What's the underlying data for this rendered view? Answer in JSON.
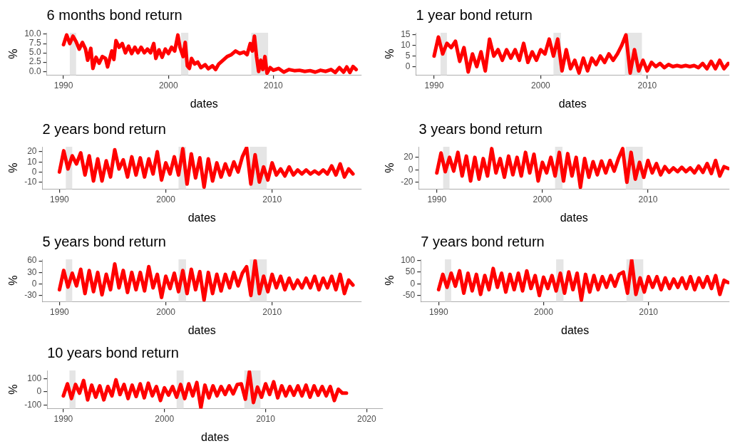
{
  "chart_data": [
    {
      "type": "line",
      "title": "6 months bond return",
      "xlabel": "dates",
      "ylabel": "%",
      "marker": "none",
      "line_style": "solid",
      "grid": false,
      "xlim": [
        1988.4,
        2018.4
      ],
      "xticks": [
        1990,
        2000,
        2010
      ],
      "ylim": [
        -1,
        10.4
      ],
      "yticks": [
        {
          "value": 0,
          "label": "0.0"
        },
        {
          "value": 2.5,
          "label": "2.5"
        },
        {
          "value": 5,
          "label": "5.0"
        },
        {
          "value": 7.5,
          "label": "7.5"
        },
        {
          "value": 10,
          "label": "10.0"
        }
      ],
      "bands": [
        {
          "axis": "x",
          "from": 1990.6,
          "to": 1991.2,
          "color": "#e5e5e5"
        },
        {
          "axis": "x",
          "from": 2001.2,
          "to": 2001.9,
          "color": "#e5e5e5"
        },
        {
          "axis": "x",
          "from": 2007.9,
          "to": 2009.5,
          "color": "#e5e5e5"
        }
      ],
      "series": [
        {
          "color": "#ff0000",
          "x": [
            1990.0,
            1990.3,
            1990.6,
            1990.9,
            1991.2,
            1991.5,
            1991.8,
            1992.1,
            1992.3,
            1992.6,
            1992.8,
            1993.1,
            1993.4,
            1993.7,
            1994.0,
            1994.2,
            1994.6,
            1994.8,
            1995.0,
            1995.3,
            1995.6,
            1995.9,
            1996.2,
            1996.5,
            1996.8,
            1997.1,
            1997.4,
            1997.7,
            1998.0,
            1998.3,
            1998.6,
            1998.8,
            1999.1,
            1999.4,
            1999.7,
            2000.0,
            2000.3,
            2000.6,
            2000.9,
            2001.1,
            2001.4,
            2001.6,
            2001.8,
            2002.0,
            2002.2,
            2002.5,
            2002.8,
            2003.1,
            2003.5,
            2003.8,
            2004.2,
            2004.5,
            2004.8,
            2005.2,
            2005.6,
            2006.0,
            2006.4,
            2006.8,
            2007.2,
            2007.5,
            2007.8,
            2008.0,
            2008.2,
            2008.4,
            2008.6,
            2008.8,
            2009.0,
            2009.2,
            2009.4,
            2009.7,
            2010.0,
            2010.5,
            2011.0,
            2011.5,
            2012.0,
            2012.5,
            2013.0,
            2013.5,
            2014.0,
            2014.5,
            2015.0,
            2015.5,
            2015.9,
            2016.3,
            2016.7,
            2017.0,
            2017.3,
            2017.6,
            2017.9
          ],
          "values": [
            7.2,
            9.8,
            7.5,
            9.5,
            8,
            6,
            7.8,
            6,
            3,
            6.2,
            0.8,
            3.8,
            2.2,
            4,
            3.5,
            1.2,
            5.5,
            3.2,
            8.3,
            6.5,
            7.5,
            5,
            6.8,
            4.8,
            6.5,
            5,
            6.5,
            5,
            6,
            5,
            7.5,
            3.5,
            5.8,
            3.8,
            6,
            4.8,
            6.5,
            5.5,
            9.8,
            6.5,
            4,
            7.8,
            1.5,
            0.8,
            3.5,
            2,
            2.5,
            1,
            1.8,
            0.7,
            1.5,
            0.5,
            2,
            3,
            4,
            4.5,
            5.5,
            4.8,
            5.2,
            4.5,
            7.5,
            5.5,
            9.5,
            4,
            0,
            3,
            0.5,
            4,
            -0.5,
            1,
            0.3,
            0.8,
            -0.2,
            0.5,
            0.2,
            0.3,
            0,
            0.2,
            -0.2,
            0.3,
            0,
            0.5,
            -0.3,
            1,
            -0.2,
            1.2,
            -0.3,
            1.3,
            0.5
          ]
        }
      ]
    },
    {
      "type": "line",
      "title": "1 year bond return",
      "xlabel": "dates",
      "ylabel": "%",
      "marker": "none",
      "line_style": "solid",
      "grid": false,
      "xlim": [
        1988.3,
        2017.7
      ],
      "xticks": [
        1990,
        2000,
        2010
      ],
      "ylim": [
        -4,
        16
      ],
      "yticks": [
        0,
        5,
        10,
        15
      ],
      "bands": [
        {
          "axis": "x",
          "from": 1990.6,
          "to": 1991.2,
          "color": "#e5e5e5"
        },
        {
          "axis": "x",
          "from": 2001.2,
          "to": 2001.9,
          "color": "#e5e5e5"
        },
        {
          "axis": "x",
          "from": 2007.9,
          "to": 2009.5,
          "color": "#e5e5e5"
        }
      ],
      "series": [
        {
          "color": "#ff0000",
          "x": [
            1990.0,
            1990.4,
            1990.8,
            1991.2,
            1991.6,
            1992.0,
            1992.4,
            1992.8,
            1993.2,
            1993.6,
            1994.0,
            1994.4,
            1994.8,
            1995.2,
            1995.6,
            1996.0,
            1996.4,
            1996.8,
            1997.2,
            1997.6,
            1998.0,
            1998.4,
            1998.8,
            1999.2,
            1999.6,
            2000.0,
            2000.4,
            2000.8,
            2001.2,
            2001.6,
            2002.0,
            2002.4,
            2002.8,
            2003.2,
            2003.6,
            2004.0,
            2004.4,
            2004.8,
            2005.2,
            2005.6,
            2006.0,
            2006.4,
            2006.8,
            2007.2,
            2007.6,
            2008.0,
            2008.4,
            2008.8,
            2009.2,
            2009.6,
            2010.0,
            2010.4,
            2010.8,
            2011.2,
            2011.6,
            2012.0,
            2012.4,
            2012.8,
            2013.2,
            2013.6,
            2014.0,
            2014.4,
            2014.8,
            2015.2,
            2015.6,
            2016.0,
            2016.4,
            2016.8,
            2017.2,
            2017.6
          ],
          "values": [
            5,
            14,
            6,
            11,
            9,
            12,
            2.5,
            9,
            -2.5,
            6,
            0,
            7,
            -2,
            13,
            5,
            8,
            3,
            8,
            4,
            8,
            3,
            11,
            2,
            7,
            3,
            8,
            6,
            13,
            5,
            13,
            -2,
            8,
            -1,
            3,
            -3,
            4,
            -2,
            4,
            1,
            5,
            2,
            6,
            3,
            6,
            10,
            15,
            -3,
            8,
            -2,
            3,
            -2,
            2,
            0,
            1.5,
            -0.5,
            1,
            0,
            0.5,
            0,
            0.5,
            0,
            0.5,
            -0.5,
            1.5,
            -1,
            2.5,
            -1,
            3,
            -1,
            1.5
          ]
        }
      ]
    },
    {
      "type": "line",
      "title": "2 years bond return",
      "xlabel": "dates",
      "ylabel": "%",
      "marker": "none",
      "line_style": "solid",
      "grid": false,
      "xlim": [
        1988.4,
        2018.4
      ],
      "xticks": [
        1990,
        2000,
        2010
      ],
      "ylim": [
        -17,
        25
      ],
      "yticks": [
        -10,
        0,
        10,
        20
      ],
      "bands": [
        {
          "axis": "x",
          "from": 1990.6,
          "to": 1991.2,
          "color": "#e5e5e5"
        },
        {
          "axis": "x",
          "from": 2001.2,
          "to": 2001.9,
          "color": "#e5e5e5"
        },
        {
          "axis": "x",
          "from": 2007.9,
          "to": 2009.5,
          "color": "#e5e5e5"
        }
      ],
      "series": [
        {
          "color": "#ff0000",
          "x": [
            1990.0,
            1990.4,
            1990.8,
            1991.2,
            1991.6,
            1992.0,
            1992.4,
            1992.8,
            1993.2,
            1993.6,
            1994.0,
            1994.4,
            1994.8,
            1995.2,
            1995.6,
            1996.0,
            1996.4,
            1996.8,
            1997.2,
            1997.6,
            1998.0,
            1998.4,
            1998.8,
            1999.2,
            1999.6,
            2000.0,
            2000.4,
            2000.8,
            2001.2,
            2001.6,
            2002.0,
            2002.4,
            2002.8,
            2003.2,
            2003.6,
            2004.0,
            2004.4,
            2004.8,
            2005.2,
            2005.6,
            2006.0,
            2006.4,
            2006.8,
            2007.2,
            2007.6,
            2008.0,
            2008.4,
            2008.8,
            2009.2,
            2009.6,
            2010.0,
            2010.4,
            2010.8,
            2011.2,
            2011.6,
            2012.0,
            2012.4,
            2012.8,
            2013.2,
            2013.6,
            2014.0,
            2014.4,
            2014.8,
            2015.2,
            2015.6,
            2016.0,
            2016.4,
            2016.8,
            2017.2,
            2017.6
          ],
          "values": [
            0,
            21,
            3,
            16,
            8,
            19,
            -3,
            16,
            -9,
            13,
            -9,
            11,
            -5,
            22,
            3,
            12,
            -5,
            15,
            -3,
            14,
            -5,
            13,
            -2,
            20,
            -8,
            9,
            -2,
            15,
            -3,
            23,
            -12,
            18,
            -6,
            14,
            -15,
            13,
            -9,
            9,
            -5,
            8,
            -3,
            10,
            0,
            15,
            24,
            -12,
            17,
            -10,
            5,
            -8,
            9,
            -3,
            3,
            -4,
            5,
            -3,
            2,
            -2,
            2,
            -2,
            1,
            -2,
            2,
            -2,
            6,
            -3,
            8,
            -5,
            3,
            -2
          ]
        }
      ]
    },
    {
      "type": "line",
      "title": "3 years bond return",
      "xlabel": "dates",
      "ylabel": "%",
      "marker": "none",
      "line_style": "solid",
      "grid": false,
      "xlim": [
        1988.3,
        2017.7
      ],
      "xticks": [
        1990,
        2000,
        2010
      ],
      "ylim": [
        -31,
        37
      ],
      "yticks": [
        -20,
        0,
        20
      ],
      "bands": [
        {
          "axis": "x",
          "from": 1990.6,
          "to": 1991.2,
          "color": "#e5e5e5"
        },
        {
          "axis": "x",
          "from": 2001.2,
          "to": 2001.9,
          "color": "#e5e5e5"
        },
        {
          "axis": "x",
          "from": 2007.9,
          "to": 2009.5,
          "color": "#e5e5e5"
        }
      ],
      "series": [
        {
          "color": "#ff0000",
          "x": [
            1990.0,
            1990.4,
            1990.8,
            1991.2,
            1991.6,
            1992.0,
            1992.4,
            1992.8,
            1993.2,
            1993.6,
            1994.0,
            1994.4,
            1994.8,
            1995.2,
            1995.6,
            1996.0,
            1996.4,
            1996.8,
            1997.2,
            1997.6,
            1998.0,
            1998.4,
            1998.8,
            1999.2,
            1999.6,
            2000.0,
            2000.4,
            2000.8,
            2001.2,
            2001.6,
            2002.0,
            2002.4,
            2002.8,
            2003.2,
            2003.6,
            2004.0,
            2004.4,
            2004.8,
            2005.2,
            2005.6,
            2006.0,
            2006.4,
            2006.8,
            2007.2,
            2007.6,
            2008.0,
            2008.4,
            2008.8,
            2009.2,
            2009.6,
            2010.0,
            2010.4,
            2010.8,
            2011.2,
            2011.6,
            2012.0,
            2012.4,
            2012.8,
            2013.2,
            2013.6,
            2014.0,
            2014.4,
            2014.8,
            2015.2,
            2015.6,
            2016.0,
            2016.4,
            2016.8,
            2017.2,
            2017.6
          ],
          "values": [
            -5,
            27,
            -3,
            20,
            -2,
            28,
            -10,
            22,
            -18,
            20,
            -15,
            18,
            -10,
            34,
            -5,
            18,
            -12,
            22,
            -8,
            20,
            -10,
            28,
            -5,
            25,
            -18,
            12,
            -5,
            20,
            -10,
            28,
            -18,
            26,
            -10,
            20,
            -28,
            18,
            -12,
            13,
            -8,
            14,
            -5,
            15,
            -2,
            18,
            34,
            -20,
            28,
            -15,
            12,
            -12,
            15,
            -5,
            10,
            -8,
            5,
            -4,
            3,
            -3,
            4,
            -3,
            3,
            -5,
            6,
            -4,
            10,
            -6,
            15,
            -10,
            5,
            2
          ]
        }
      ]
    },
    {
      "type": "line",
      "title": "5 years bond return",
      "xlabel": "dates",
      "ylabel": "%",
      "marker": "none",
      "line_style": "solid",
      "grid": false,
      "xlim": [
        1988.4,
        2018.4
      ],
      "xticks": [
        1990,
        2000,
        2010
      ],
      "ylim": [
        -46,
        64
      ],
      "yticks": [
        -30,
        0,
        30,
        60
      ],
      "bands": [
        {
          "axis": "x",
          "from": 1990.6,
          "to": 1991.2,
          "color": "#e5e5e5"
        },
        {
          "axis": "x",
          "from": 2001.2,
          "to": 2001.9,
          "color": "#e5e5e5"
        },
        {
          "axis": "x",
          "from": 2007.9,
          "to": 2009.5,
          "color": "#e5e5e5"
        }
      ],
      "series": [
        {
          "color": "#ff0000",
          "x": [
            1990.0,
            1990.4,
            1990.8,
            1991.2,
            1991.6,
            1992.0,
            1992.4,
            1992.8,
            1993.2,
            1993.6,
            1994.0,
            1994.4,
            1994.8,
            1995.2,
            1995.6,
            1996.0,
            1996.4,
            1996.8,
            1997.2,
            1997.6,
            1998.0,
            1998.4,
            1998.8,
            1999.2,
            1999.6,
            2000.0,
            2000.4,
            2000.8,
            2001.2,
            2001.6,
            2002.0,
            2002.4,
            2002.8,
            2003.2,
            2003.6,
            2004.0,
            2004.4,
            2004.8,
            2005.2,
            2005.6,
            2006.0,
            2006.4,
            2006.8,
            2007.2,
            2007.6,
            2008.0,
            2008.4,
            2008.8,
            2009.2,
            2009.6,
            2010.0,
            2010.4,
            2010.8,
            2011.2,
            2011.6,
            2012.0,
            2012.4,
            2012.8,
            2013.2,
            2013.6,
            2014.0,
            2014.4,
            2014.8,
            2015.2,
            2015.6,
            2016.0,
            2016.4,
            2016.8,
            2017.2,
            2017.6
          ],
          "values": [
            -15,
            35,
            -8,
            28,
            -5,
            38,
            -25,
            35,
            -20,
            30,
            -28,
            25,
            -15,
            52,
            -10,
            35,
            -22,
            30,
            -15,
            30,
            -18,
            45,
            -10,
            25,
            -35,
            20,
            -12,
            28,
            -20,
            35,
            -25,
            38,
            -15,
            32,
            -42,
            30,
            -25,
            25,
            -18,
            25,
            -10,
            30,
            -5,
            28,
            45,
            -30,
            60,
            -25,
            20,
            -20,
            25,
            -10,
            20,
            -15,
            15,
            -12,
            10,
            -10,
            15,
            -10,
            20,
            -15,
            15,
            -10,
            20,
            -15,
            25,
            -25,
            10,
            -3
          ]
        }
      ]
    },
    {
      "type": "line",
      "title": "7 years bond return",
      "xlabel": "dates",
      "ylabel": "%",
      "marker": "none",
      "line_style": "solid",
      "grid": false,
      "xlim": [
        1988.3,
        2017.7
      ],
      "xticks": [
        1990,
        2000,
        2010
      ],
      "ylim": [
        -76,
        104
      ],
      "yticks": [
        -50,
        0,
        50,
        100
      ],
      "bands": [
        {
          "axis": "x",
          "from": 1990.6,
          "to": 1991.2,
          "color": "#e5e5e5"
        },
        {
          "axis": "x",
          "from": 2001.2,
          "to": 2001.9,
          "color": "#e5e5e5"
        },
        {
          "axis": "x",
          "from": 2007.9,
          "to": 2009.5,
          "color": "#e5e5e5"
        }
      ],
      "series": [
        {
          "color": "#ff0000",
          "x": [
            1990.0,
            1990.4,
            1990.8,
            1991.2,
            1991.6,
            1992.0,
            1992.4,
            1992.8,
            1993.2,
            1993.6,
            1994.0,
            1994.4,
            1994.8,
            1995.2,
            1995.6,
            1996.0,
            1996.4,
            1996.8,
            1997.2,
            1997.6,
            1998.0,
            1998.4,
            1998.8,
            1999.2,
            1999.6,
            2000.0,
            2000.4,
            2000.8,
            2001.2,
            2001.6,
            2002.0,
            2002.4,
            2002.8,
            2003.2,
            2003.6,
            2004.0,
            2004.4,
            2004.8,
            2005.2,
            2005.6,
            2006.0,
            2006.4,
            2006.8,
            2007.2,
            2007.6,
            2008.0,
            2008.4,
            2008.8,
            2009.2,
            2009.6,
            2010.0,
            2010.4,
            2010.8,
            2011.2,
            2011.6,
            2012.0,
            2012.4,
            2012.8,
            2013.2,
            2013.6,
            2014.0,
            2014.4,
            2014.8,
            2015.2,
            2015.6,
            2016.0,
            2016.4,
            2016.8,
            2017.2,
            2017.6
          ],
          "values": [
            -25,
            40,
            -15,
            45,
            -10,
            55,
            -40,
            45,
            -30,
            40,
            -45,
            35,
            -25,
            65,
            -15,
            45,
            -35,
            40,
            -25,
            45,
            -30,
            55,
            -20,
            35,
            -50,
            28,
            -20,
            35,
            -30,
            45,
            -40,
            50,
            -25,
            45,
            -70,
            40,
            -35,
            35,
            -25,
            30,
            -15,
            35,
            -10,
            40,
            50,
            -40,
            100,
            -45,
            25,
            -35,
            30,
            -15,
            30,
            -25,
            25,
            -20,
            20,
            -15,
            25,
            -20,
            30,
            -25,
            25,
            -15,
            30,
            -20,
            35,
            -45,
            15,
            5
          ]
        }
      ]
    },
    {
      "type": "line",
      "title": "10 years bond return",
      "xlabel": "dates",
      "ylabel": "%",
      "marker": "none",
      "line_style": "solid",
      "grid": false,
      "xlim": [
        1988.4,
        2021.6
      ],
      "xticks": [
        1990,
        2000,
        2010,
        2020
      ],
      "ylim": [
        -125,
        160
      ],
      "yticks": [
        -100,
        0,
        100
      ],
      "bands": [
        {
          "axis": "x",
          "from": 1990.6,
          "to": 1991.2,
          "color": "#e5e5e5"
        },
        {
          "axis": "x",
          "from": 2001.2,
          "to": 2001.9,
          "color": "#e5e5e5"
        },
        {
          "axis": "x",
          "from": 2007.9,
          "to": 2009.5,
          "color": "#e5e5e5"
        }
      ],
      "series": [
        {
          "color": "#ff0000",
          "x": [
            1990.0,
            1990.4,
            1990.8,
            1991.2,
            1991.6,
            1992.0,
            1992.4,
            1992.8,
            1993.2,
            1993.6,
            1994.0,
            1994.4,
            1994.8,
            1995.2,
            1995.6,
            1996.0,
            1996.4,
            1996.8,
            1997.2,
            1997.6,
            1998.0,
            1998.4,
            1998.8,
            1999.2,
            1999.6,
            2000.0,
            2000.4,
            2000.8,
            2001.2,
            2001.6,
            2002.0,
            2002.4,
            2002.8,
            2003.2,
            2003.6,
            2004.0,
            2004.4,
            2004.8,
            2005.2,
            2005.6,
            2006.0,
            2006.4,
            2006.8,
            2007.2,
            2007.6,
            2008.0,
            2008.4,
            2008.8,
            2009.2,
            2009.6,
            2010.0,
            2010.4,
            2010.8,
            2011.2,
            2011.6,
            2012.0,
            2012.4,
            2012.8,
            2013.2,
            2013.6,
            2014.0,
            2014.4,
            2014.8,
            2015.2,
            2015.6,
            2016.0,
            2016.4,
            2016.8,
            2017.2,
            2017.6,
            2018.0
          ],
          "values": [
            -30,
            60,
            -50,
            55,
            -10,
            85,
            -60,
            50,
            -40,
            45,
            -60,
            40,
            -30,
            90,
            -20,
            55,
            -50,
            50,
            -35,
            60,
            -45,
            65,
            -30,
            40,
            -65,
            30,
            -25,
            40,
            -40,
            55,
            -50,
            60,
            -30,
            70,
            -120,
            50,
            -45,
            45,
            -30,
            40,
            -20,
            45,
            -15,
            55,
            60,
            -55,
            150,
            -80,
            35,
            -40,
            60,
            -20,
            75,
            -45,
            45,
            -30,
            40,
            -25,
            45,
            -30,
            50,
            -40,
            45,
            -25,
            40,
            -30,
            40,
            -65,
            20,
            -10,
            -10
          ]
        }
      ]
    }
  ]
}
